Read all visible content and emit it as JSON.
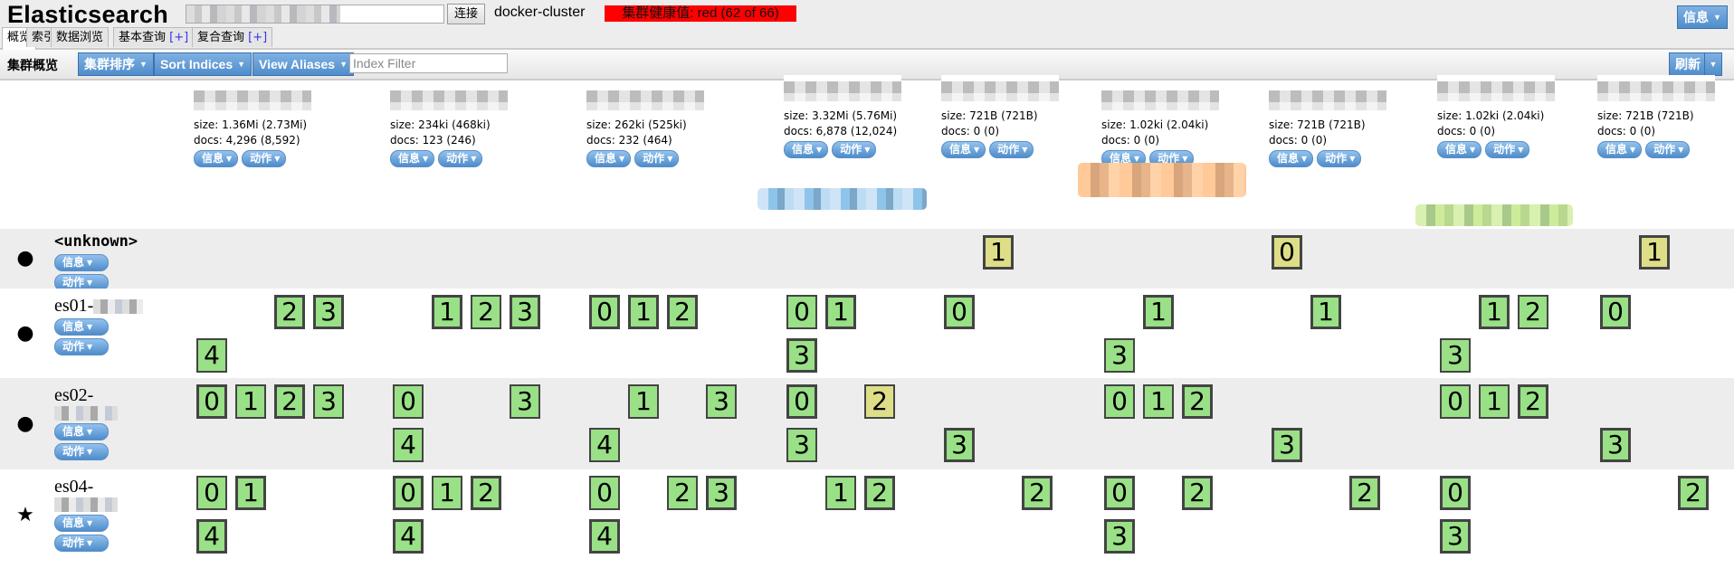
{
  "header": {
    "title": "Elasticsearch",
    "connect_label": "连接",
    "cluster_name": "docker-cluster",
    "health": "集群健康值: red (62 of 66)",
    "health_color": "#ff0000",
    "info_label": "信息"
  },
  "tabs": [
    {
      "label": "概览",
      "active": true
    },
    {
      "label": "索引"
    },
    {
      "label": "数据浏览"
    },
    {
      "label": "基本查询",
      "plus": "[+]"
    },
    {
      "label": "复合查询",
      "plus": "[+]"
    }
  ],
  "toolbar": {
    "title": "集群概览",
    "sort_cluster": "集群排序",
    "sort_indices": "Sort Indices",
    "view_aliases": "View Aliases",
    "index_filter_placeholder": "Index Filter",
    "refresh": "刷新"
  },
  "labels": {
    "info": "信息",
    "action": "动作",
    "size_prefix": "size: ",
    "docs_prefix": "docs: "
  },
  "colors": {
    "started": "#99e087",
    "unassigned": "#dede88",
    "accent": "#4f8dcb"
  },
  "indices": [
    {
      "size": "1.36Mi (2.73Mi)",
      "docs": "4,296 (8,592)"
    },
    {
      "size": "234ki (468ki)",
      "docs": "123 (246)"
    },
    {
      "size": "262ki (525ki)",
      "docs": "232 (464)"
    },
    {
      "size": "3.32Mi (5.76Mi)",
      "docs": "6,878 (12,024)"
    },
    {
      "size": "721B (721B)",
      "docs": "0 (0)"
    },
    {
      "size": "1.02ki (2.04ki)",
      "docs": "0 (0)"
    },
    {
      "size": "721B (721B)",
      "docs": "0 (0)"
    },
    {
      "size": "1.02ki (2.04ki)",
      "docs": "0 (0)"
    },
    {
      "size": "721B (721B)",
      "docs": "0 (0)"
    }
  ],
  "nodes": [
    {
      "name": "<unknown>",
      "icon": "circle",
      "shards": [
        [],
        [],
        [],
        [],
        [
          {
            "shard": 1,
            "primary": true,
            "state": "unassigned"
          }
        ],
        [],
        [
          {
            "shard": 0,
            "primary": true,
            "state": "unassigned"
          }
        ],
        [],
        [
          {
            "shard": 1,
            "primary": true,
            "state": "unassigned"
          }
        ]
      ]
    },
    {
      "name": "es01-",
      "icon": "circle",
      "shards": [
        [
          {
            "shard": 2,
            "primary": true,
            "state": "started"
          },
          {
            "shard": 3,
            "primary": true,
            "state": "started"
          },
          {
            "shard": 4,
            "primary": false,
            "state": "started"
          }
        ],
        [
          {
            "shard": 1,
            "primary": true,
            "state": "started"
          },
          {
            "shard": 2,
            "primary": false,
            "state": "started"
          },
          {
            "shard": 3,
            "primary": true,
            "state": "started"
          }
        ],
        [
          {
            "shard": 0,
            "primary": true,
            "state": "started"
          },
          {
            "shard": 1,
            "primary": true,
            "state": "started"
          },
          {
            "shard": 2,
            "primary": true,
            "state": "started"
          }
        ],
        [
          {
            "shard": 0,
            "primary": false,
            "state": "started"
          },
          {
            "shard": 1,
            "primary": true,
            "state": "started"
          },
          {
            "shard": 3,
            "primary": true,
            "state": "started"
          }
        ],
        [
          {
            "shard": 0,
            "primary": true,
            "state": "started"
          }
        ],
        [
          {
            "shard": 1,
            "primary": true,
            "state": "started"
          },
          {
            "shard": 3,
            "primary": false,
            "state": "started"
          }
        ],
        [
          {
            "shard": 1,
            "primary": true,
            "state": "started"
          }
        ],
        [
          {
            "shard": 1,
            "primary": true,
            "state": "started"
          },
          {
            "shard": 2,
            "primary": false,
            "state": "started"
          },
          {
            "shard": 3,
            "primary": false,
            "state": "started"
          }
        ],
        [
          {
            "shard": 0,
            "primary": true,
            "state": "started"
          }
        ]
      ]
    },
    {
      "name": "es02-",
      "icon": "circle",
      "shards": [
        [
          {
            "shard": 0,
            "primary": true,
            "state": "started"
          },
          {
            "shard": 1,
            "primary": false,
            "state": "started"
          },
          {
            "shard": 2,
            "primary": true,
            "state": "started"
          },
          {
            "shard": 3,
            "primary": false,
            "state": "started"
          }
        ],
        [
          {
            "shard": 0,
            "primary": false,
            "state": "started"
          },
          {
            "shard": 3,
            "primary": false,
            "state": "started"
          },
          {
            "shard": 4,
            "primary": false,
            "state": "started"
          }
        ],
        [
          {
            "shard": 1,
            "primary": false,
            "state": "started"
          },
          {
            "shard": 3,
            "primary": false,
            "state": "started"
          },
          {
            "shard": 4,
            "primary": false,
            "state": "started"
          }
        ],
        [
          {
            "shard": 0,
            "primary": true,
            "state": "started"
          },
          {
            "shard": 2,
            "primary": false,
            "state": "initializing"
          },
          {
            "shard": 3,
            "primary": false,
            "state": "started"
          }
        ],
        [
          {
            "shard": 3,
            "primary": true,
            "state": "started"
          }
        ],
        [
          {
            "shard": 0,
            "primary": false,
            "state": "started"
          },
          {
            "shard": 1,
            "primary": false,
            "state": "started"
          },
          {
            "shard": 2,
            "primary": true,
            "state": "started"
          }
        ],
        [
          {
            "shard": 3,
            "primary": true,
            "state": "started"
          }
        ],
        [
          {
            "shard": 0,
            "primary": false,
            "state": "started"
          },
          {
            "shard": 1,
            "primary": false,
            "state": "started"
          },
          {
            "shard": 2,
            "primary": true,
            "state": "started"
          }
        ],
        [
          {
            "shard": 3,
            "primary": true,
            "state": "started"
          }
        ]
      ]
    },
    {
      "name": "es04-",
      "icon": "star",
      "shards": [
        [
          {
            "shard": 0,
            "primary": false,
            "state": "started"
          },
          {
            "shard": 1,
            "primary": true,
            "state": "started"
          },
          {
            "shard": 4,
            "primary": true,
            "state": "started"
          }
        ],
        [
          {
            "shard": 0,
            "primary": true,
            "state": "started"
          },
          {
            "shard": 1,
            "primary": false,
            "state": "started"
          },
          {
            "shard": 2,
            "primary": true,
            "state": "started"
          },
          {
            "shard": 4,
            "primary": true,
            "state": "started"
          }
        ],
        [
          {
            "shard": 0,
            "primary": false,
            "state": "started"
          },
          {
            "shard": 2,
            "primary": false,
            "state": "started"
          },
          {
            "shard": 3,
            "primary": true,
            "state": "started"
          },
          {
            "shard": 4,
            "primary": true,
            "state": "started"
          }
        ],
        [
          {
            "shard": 1,
            "primary": false,
            "state": "started"
          },
          {
            "shard": 2,
            "primary": true,
            "state": "started"
          }
        ],
        [
          {
            "shard": 2,
            "primary": true,
            "state": "started"
          }
        ],
        [
          {
            "shard": 0,
            "primary": true,
            "state": "started"
          },
          {
            "shard": 2,
            "primary": true,
            "state": "started"
          },
          {
            "shard": 3,
            "primary": true,
            "state": "started"
          }
        ],
        [
          {
            "shard": 2,
            "primary": true,
            "state": "started"
          }
        ],
        [
          {
            "shard": 0,
            "primary": true,
            "state": "started"
          },
          {
            "shard": 3,
            "primary": true,
            "state": "started"
          }
        ],
        [
          {
            "shard": 2,
            "primary": true,
            "state": "started"
          }
        ]
      ]
    }
  ]
}
